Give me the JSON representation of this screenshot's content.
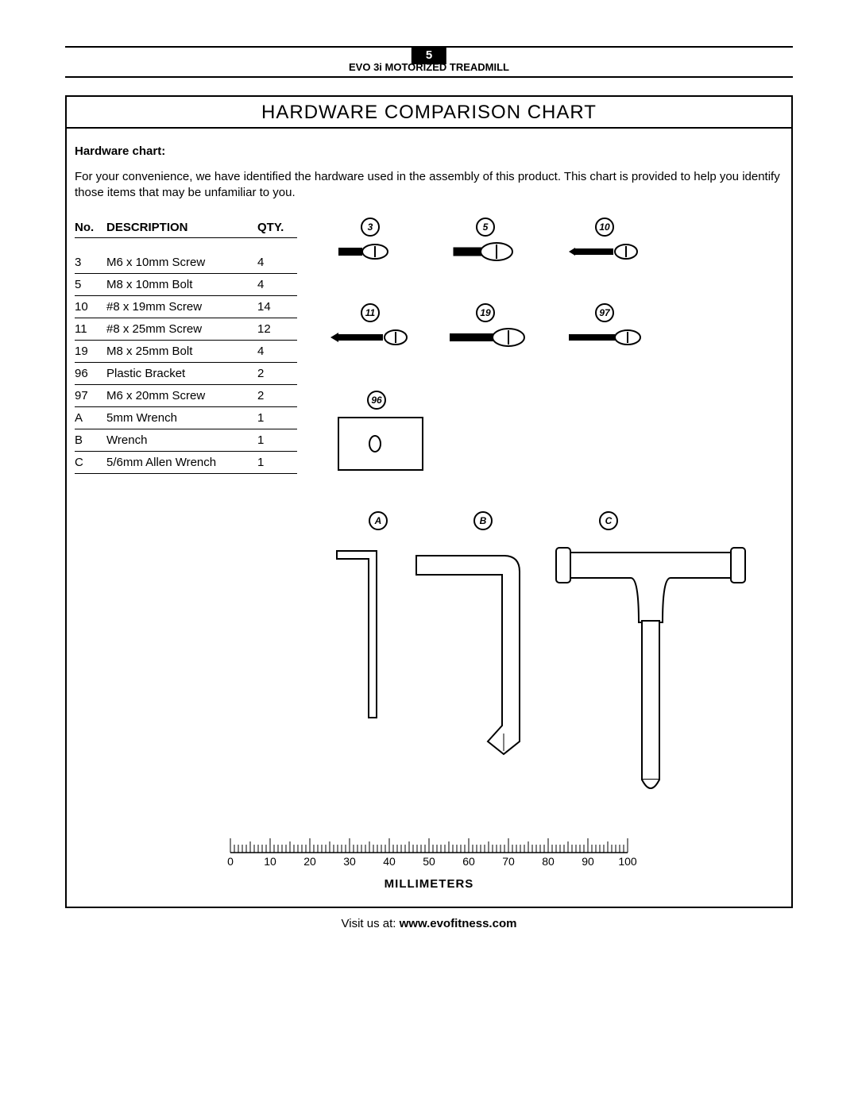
{
  "page_number": "5",
  "product": "EVO 3i MOTORIZED TREADMILL",
  "title": "HARDWARE COMPARISON CHART",
  "subheading": "Hardware chart:",
  "intro": "For your convenience, we have identified the hardware used in the assembly of this product.  This chart is provided to help you identify those items that may be unfamiliar to you.",
  "table": {
    "headers": {
      "no": "No.",
      "desc": "DESCRIPTION",
      "qty": "QTY."
    },
    "rows": [
      {
        "no": "3",
        "desc": "M6 x 10mm Screw",
        "qty": "4"
      },
      {
        "no": "5",
        "desc": "M8 x 10mm Bolt",
        "qty": "4"
      },
      {
        "no": "10",
        "desc": "#8 x 19mm Screw",
        "qty": "14"
      },
      {
        "no": "11",
        "desc": "#8 x 25mm Screw",
        "qty": "12"
      },
      {
        "no": "19",
        "desc": "M8 x 25mm Bolt",
        "qty": "4"
      },
      {
        "no": "96",
        "desc": "Plastic Bracket",
        "qty": "2"
      },
      {
        "no": "97",
        "desc": "M6 x 20mm Screw",
        "qty": "2"
      },
      {
        "no": "A",
        "desc": "5mm Wrench",
        "qty": "1"
      },
      {
        "no": "B",
        "desc": "Wrench",
        "qty": "1"
      },
      {
        "no": "C",
        "desc": "5/6mm Allen Wrench",
        "qty": "1"
      }
    ]
  },
  "callouts": {
    "row1": [
      "3",
      "5",
      "10"
    ],
    "row2": [
      "11",
      "19",
      "97"
    ],
    "row3": [
      "96"
    ],
    "row4": [
      "A",
      "B",
      "C"
    ]
  },
  "ruler": {
    "ticks": [
      "0",
      "10",
      "20",
      "30",
      "40",
      "50",
      "60",
      "70",
      "80",
      "90",
      "100"
    ],
    "label": "MILLIMETERS"
  },
  "footer_prefix": "Visit us at: ",
  "footer_url": "www.evofitness.com"
}
